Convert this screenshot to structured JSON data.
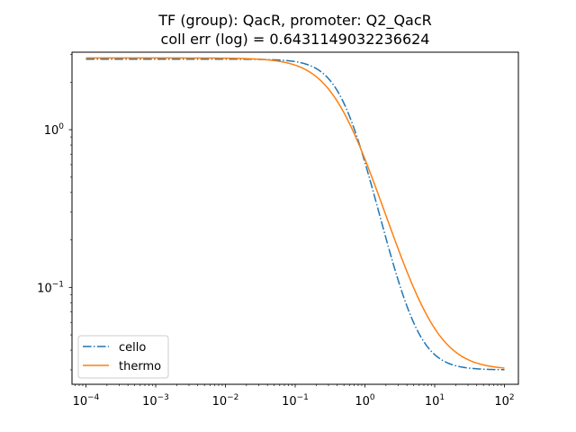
{
  "chart_data": {
    "type": "line",
    "title": "TF (group): QacR, promoter: Q2_QacR",
    "subtitle": "coll err (log) = 0.6431149032236624",
    "xlabel": "",
    "ylabel": "",
    "xscale": "log",
    "yscale": "log",
    "xlim": [
      6.31e-05,
      158.5
    ],
    "ylim": [
      0.0243,
      3.1
    ],
    "grid": false,
    "legend_position": "lower-left",
    "x_ticks": [
      {
        "value": 0.0001,
        "base": "10",
        "exp": "−4"
      },
      {
        "value": 0.001,
        "base": "10",
        "exp": "−3"
      },
      {
        "value": 0.01,
        "base": "10",
        "exp": "−2"
      },
      {
        "value": 0.1,
        "base": "10",
        "exp": "−1"
      },
      {
        "value": 1,
        "base": "10",
        "exp": "0"
      },
      {
        "value": 10,
        "base": "10",
        "exp": "1"
      },
      {
        "value": 100,
        "base": "10",
        "exp": "2"
      }
    ],
    "y_ticks": [
      {
        "value": 0.1,
        "base": "10",
        "exp": "−1"
      },
      {
        "value": 1,
        "base": "10",
        "exp": "0"
      }
    ],
    "series": [
      {
        "name": "cello",
        "color": "#1f77b4",
        "linestyle": "dashdot",
        "ymin": 0.03,
        "ymax": 2.8,
        "K": 0.52,
        "n": 2.0,
        "x_range": [
          0.0001,
          100
        ]
      },
      {
        "name": "thermo",
        "color": "#ff7f0e",
        "linestyle": "solid",
        "ymin": 0.03,
        "ymax": 2.85,
        "K": 0.43,
        "n": 1.5,
        "x_range": [
          0.0001,
          100
        ]
      }
    ]
  }
}
